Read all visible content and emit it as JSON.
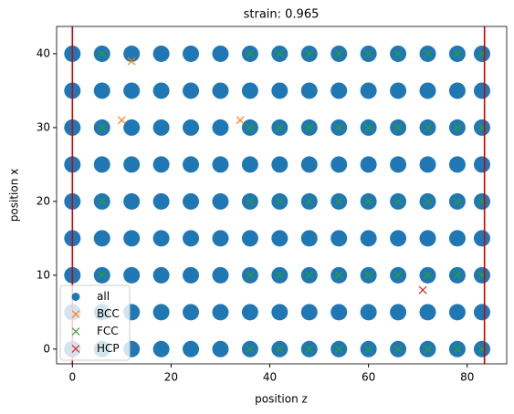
{
  "chart_data": {
    "type": "scatter",
    "title": "strain: 0.965",
    "xlabel": "position z",
    "ylabel": "position x",
    "xlim": [
      -3.2,
      88
    ],
    "ylim": [
      -2,
      43.7
    ],
    "xticks": [
      0,
      20,
      40,
      60,
      80
    ],
    "yticks": [
      0,
      10,
      20,
      30,
      40
    ],
    "vlines": [
      0,
      83.5
    ],
    "vline_color": "#d00000",
    "legend": "lower left",
    "series": [
      {
        "name": "all",
        "color": "#1f77b4",
        "marker": "o",
        "x": [
          0,
          6,
          12,
          18,
          24,
          30,
          36,
          42,
          48,
          54,
          60,
          66,
          72,
          78,
          83,
          0,
          6,
          12,
          18,
          24,
          30,
          36,
          42,
          48,
          54,
          60,
          66,
          72,
          78,
          83,
          0,
          6,
          12,
          18,
          24,
          30,
          36,
          42,
          48,
          54,
          60,
          66,
          72,
          78,
          83,
          0,
          6,
          12,
          18,
          24,
          30,
          36,
          42,
          48,
          54,
          60,
          66,
          72,
          78,
          83,
          0,
          6,
          12,
          18,
          24,
          30,
          36,
          42,
          48,
          54,
          60,
          66,
          72,
          78,
          83,
          0,
          6,
          12,
          18,
          24,
          30,
          36,
          42,
          48,
          54,
          60,
          66,
          72,
          78,
          83,
          0,
          6,
          12,
          18,
          24,
          30,
          36,
          42,
          48,
          54,
          60,
          66,
          72,
          78,
          83,
          0,
          6,
          12,
          18,
          24,
          30,
          36,
          42,
          48,
          54,
          60,
          66,
          72,
          78,
          83,
          0,
          6,
          12,
          18,
          24,
          30,
          36,
          42,
          48,
          54,
          60,
          66,
          72,
          78,
          83
        ],
        "y": [
          0,
          0,
          0,
          0,
          0,
          0,
          0,
          0,
          0,
          0,
          0,
          0,
          0,
          0,
          0,
          5,
          5,
          5,
          5,
          5,
          5,
          5,
          5,
          5,
          5,
          5,
          5,
          5,
          5,
          5,
          10,
          10,
          10,
          10,
          10,
          10,
          10,
          10,
          10,
          10,
          10,
          10,
          10,
          10,
          10,
          15,
          15,
          15,
          15,
          15,
          15,
          15,
          15,
          15,
          15,
          15,
          15,
          15,
          15,
          15,
          20,
          20,
          20,
          20,
          20,
          20,
          20,
          20,
          20,
          20,
          20,
          20,
          20,
          20,
          20,
          25,
          25,
          25,
          25,
          25,
          25,
          25,
          25,
          25,
          25,
          25,
          25,
          25,
          25,
          25,
          30,
          30,
          30,
          30,
          30,
          30,
          30,
          30,
          30,
          30,
          30,
          30,
          30,
          30,
          30,
          35,
          35,
          35,
          35,
          35,
          35,
          35,
          35,
          35,
          35,
          35,
          35,
          35,
          35,
          35,
          40,
          40,
          40,
          40,
          40,
          40,
          40,
          40,
          40,
          40,
          40,
          40,
          40,
          40,
          40
        ]
      },
      {
        "name": "BCC",
        "color": "#ff7f0e",
        "marker": "x",
        "x": [
          10,
          34,
          12
        ],
        "y": [
          31,
          31,
          39
        ]
      },
      {
        "name": "FCC",
        "color": "#2ca02c",
        "marker": "x",
        "x": [
          6,
          36,
          42,
          48,
          54,
          60,
          66,
          72,
          78,
          83,
          6,
          36,
          42,
          48,
          54,
          60,
          66,
          72,
          78,
          83,
          6,
          36,
          42,
          48,
          54,
          60,
          66,
          72,
          78,
          83,
          6,
          36,
          42,
          48,
          54,
          60,
          66,
          72,
          78,
          83,
          6,
          36,
          42,
          48,
          54,
          60,
          66,
          72,
          78,
          83
        ],
        "y": [
          0,
          0,
          0,
          0,
          0,
          0,
          0,
          0,
          0,
          0,
          10,
          10,
          10,
          10,
          10,
          10,
          10,
          10,
          10,
          10,
          20,
          20,
          20,
          20,
          20,
          20,
          20,
          20,
          20,
          20,
          30,
          30,
          30,
          30,
          30,
          30,
          30,
          30,
          30,
          30,
          40,
          40,
          40,
          40,
          40,
          40,
          40,
          40,
          40,
          40
        ]
      },
      {
        "name": "HCP",
        "color": "#d62728",
        "marker": "x",
        "x": [
          71
        ],
        "y": [
          8
        ]
      }
    ]
  }
}
